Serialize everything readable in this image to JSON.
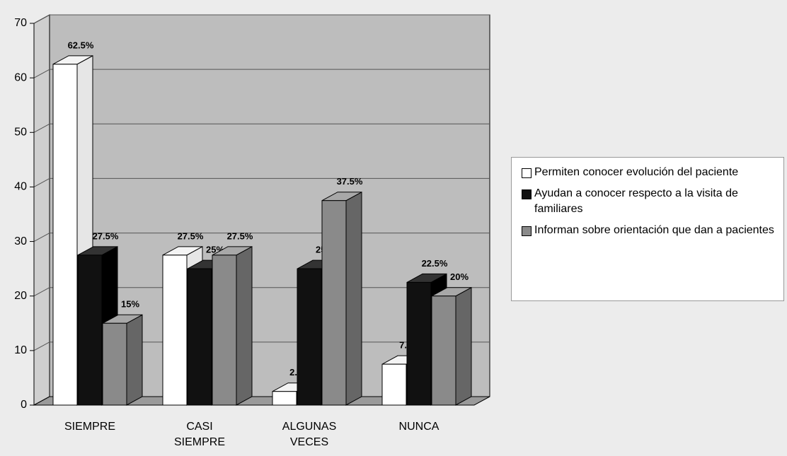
{
  "chart_data": {
    "type": "bar3d",
    "categories": [
      "SIEMPRE",
      "CASI SIEMPRE",
      "ALGUNAS VECES",
      "NUNCA"
    ],
    "series": [
      {
        "name": "Permiten conocer evolución del paciente",
        "color": "#ffffff",
        "values": [
          62.5,
          27.5,
          2.5,
          7.5
        ],
        "value_labels": [
          "62.5%",
          "27.5%",
          "2.5%",
          "7.5%"
        ]
      },
      {
        "name": "Ayudan a conocer respecto a la visita de familiares",
        "color": "#111111",
        "values": [
          27.5,
          25,
          25,
          22.5
        ],
        "value_labels": [
          "27.5%",
          "25%",
          "25%",
          "22.5%"
        ]
      },
      {
        "name": "Informan sobre orientación que dan a pacientes",
        "color": "#8a8a8a",
        "values": [
          15,
          27.5,
          37.5,
          20
        ],
        "value_labels": [
          "15%",
          "27.5%",
          "37.5%",
          "20%"
        ]
      }
    ],
    "ylim": [
      0,
      70
    ],
    "yticks": [
      0,
      10,
      20,
      30,
      40,
      50,
      60,
      70
    ],
    "grid": true,
    "legend": "right"
  }
}
